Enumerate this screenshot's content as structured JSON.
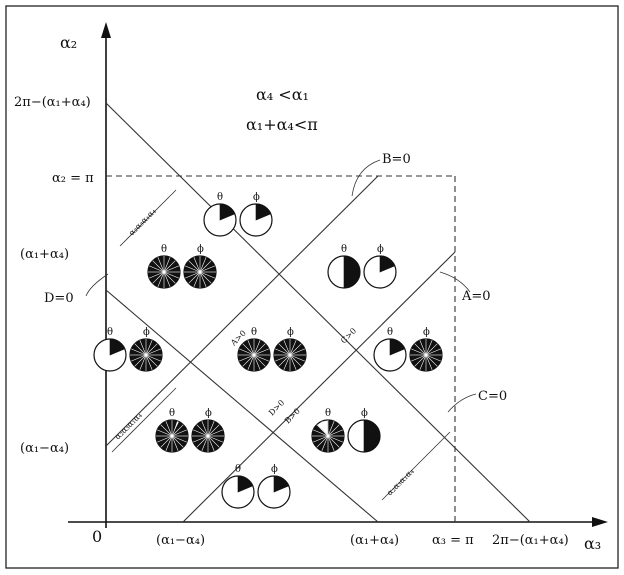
{
  "axes": {
    "y_label": "α₂",
    "x_label": "α₃",
    "origin": "0"
  },
  "conditions": {
    "line1": "α₄ <α₁",
    "line2": "α₁+α₄<π"
  },
  "y_ticks": {
    "top": "2π−(α₁+α₄)",
    "pi": "α₂ = π",
    "sum": "(α₁+α₄)",
    "diff": "(α₁−α₄)"
  },
  "x_ticks": {
    "diff": "(α₁−α₄)",
    "sum": "(α₁+α₄)",
    "pi": "α₃ = π",
    "top": "2π−(α₁+α₄)"
  },
  "line_labels": {
    "B": "B=0",
    "A": "A=0",
    "C": "C=0",
    "D": "D=0"
  },
  "region_dims": {
    "top_left": "α₂α₃α₁α₄",
    "bottom_left": "α₂α₃α₁α₄",
    "bottom_right": "α₂α₃α₁α₄",
    "inner_a": "A>0",
    "inner_b": "B>0",
    "inner_c": "C>0",
    "inner_d": "D>0"
  },
  "symbols": {
    "theta": "θ",
    "phi": "ϕ"
  }
}
